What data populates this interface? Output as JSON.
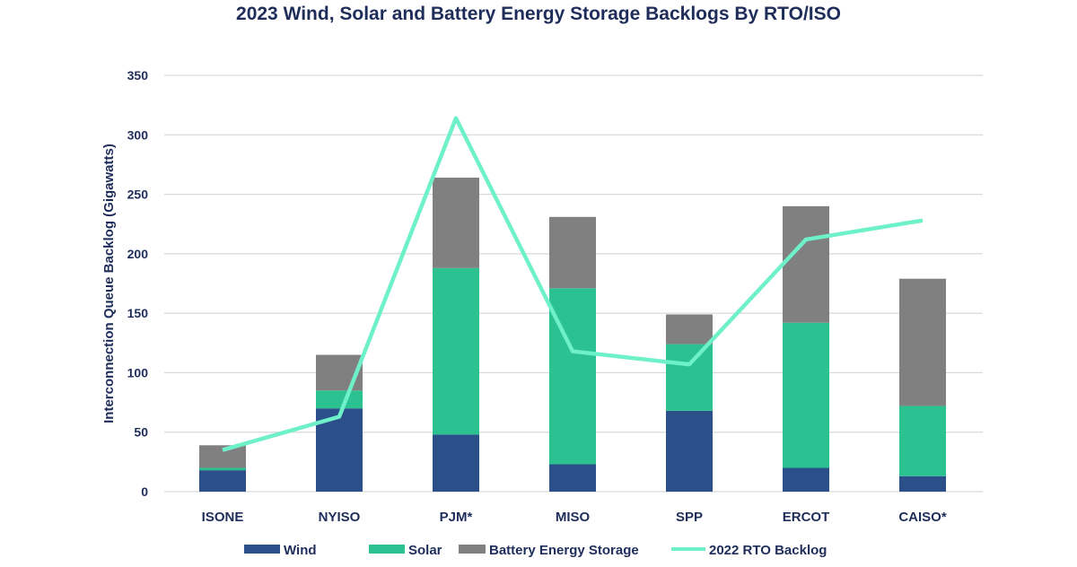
{
  "chart_data": {
    "type": "bar",
    "stacked": true,
    "title": "2023 Wind, Solar and Battery Energy Storage Backlogs By RTO/ISO",
    "xlabel": "",
    "ylabel": "Interconnection Queue Backlog (Gigawatts)",
    "ylim": [
      0,
      350
    ],
    "yticks": [
      0,
      50,
      100,
      150,
      200,
      250,
      300,
      350
    ],
    "grid": true,
    "legend_position": "bottom",
    "categories": [
      "ISONE",
      "NYISO",
      "PJM*",
      "MISO",
      "SPP",
      "ERCOT",
      "CAISO*"
    ],
    "series": [
      {
        "name": "Wind",
        "type": "bar",
        "color": "#2b5089",
        "values": [
          18,
          70,
          48,
          23,
          68,
          20,
          13
        ]
      },
      {
        "name": "Solar",
        "type": "bar",
        "color": "#2bc191",
        "values": [
          2,
          15,
          140,
          148,
          56,
          122,
          59
        ]
      },
      {
        "name": "Battery Energy Storage",
        "type": "bar",
        "color": "#808080",
        "values": [
          19,
          30,
          76,
          60,
          25,
          98,
          107
        ]
      },
      {
        "name": "2022 RTO Backlog",
        "type": "line",
        "color": "#6ef0c8",
        "values": [
          35,
          63,
          314,
          118,
          107,
          212,
          228
        ]
      }
    ]
  }
}
